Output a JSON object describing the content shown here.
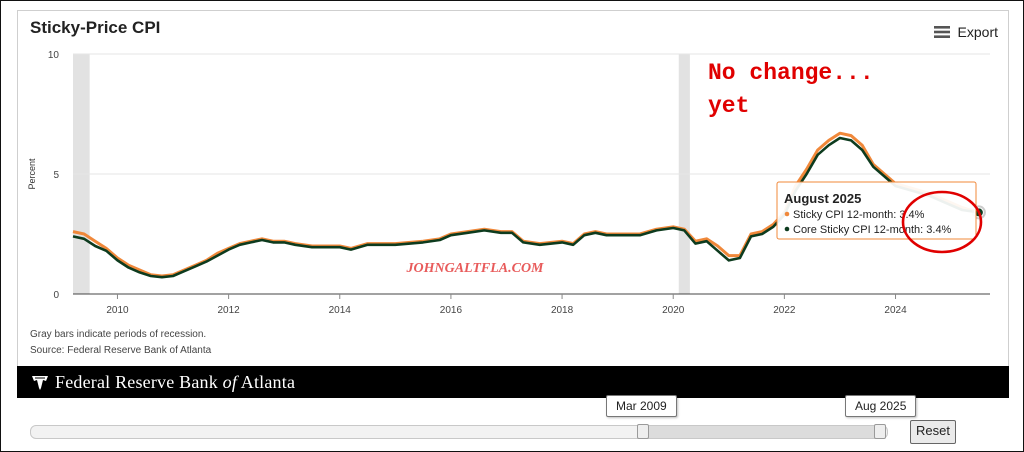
{
  "chart_title": "Sticky-Price CPI",
  "export_label": "Export",
  "notes": [
    "Gray bars indicate periods of recession.",
    "Source: Federal Reserve Bank of Atlanta"
  ],
  "banner": {
    "name_part1": "Federal Reserve Bank ",
    "name_of": "of",
    "name_part2": " Atlanta"
  },
  "annotation": {
    "line1": "No change...",
    "line2": "yet",
    "color": "#e00000"
  },
  "watermark": "JOHNGALTFLA.COM",
  "tooltip": {
    "title": "August 2025",
    "line1": "Sticky CPI 12-month: 3.4%",
    "line2": "Core Sticky CPI 12-month: 3.4%"
  },
  "navigator": {
    "start_label": "Mar 2009",
    "end_label": "Aug 2025",
    "reset_label": "Reset"
  },
  "chart_data": {
    "type": "line",
    "title": "Sticky-Price CPI",
    "ylabel": "Percent",
    "ylim": [
      0,
      10
    ],
    "xlim": [
      2009.2,
      2025.7
    ],
    "yticks": [
      0,
      5,
      10
    ],
    "xticks": [
      2010,
      2012,
      2014,
      2016,
      2018,
      2020,
      2022,
      2024
    ],
    "recessions": [
      [
        2009.2,
        2009.5
      ],
      [
        2020.1,
        2020.3
      ]
    ],
    "series": [
      {
        "name": "Sticky CPI 12-month",
        "color": "#f0883a",
        "points": [
          [
            2009.2,
            2.6
          ],
          [
            2009.4,
            2.5
          ],
          [
            2009.6,
            2.2
          ],
          [
            2009.8,
            1.9
          ],
          [
            2010.0,
            1.5
          ],
          [
            2010.2,
            1.2
          ],
          [
            2010.4,
            1.0
          ],
          [
            2010.6,
            0.8
          ],
          [
            2010.8,
            0.75
          ],
          [
            2011.0,
            0.8
          ],
          [
            2011.2,
            1.0
          ],
          [
            2011.4,
            1.2
          ],
          [
            2011.6,
            1.4
          ],
          [
            2011.8,
            1.7
          ],
          [
            2012.0,
            1.9
          ],
          [
            2012.2,
            2.1
          ],
          [
            2012.4,
            2.2
          ],
          [
            2012.6,
            2.3
          ],
          [
            2012.8,
            2.2
          ],
          [
            2013.0,
            2.2
          ],
          [
            2013.2,
            2.1
          ],
          [
            2013.5,
            2.0
          ],
          [
            2014.0,
            2.0
          ],
          [
            2014.2,
            1.9
          ],
          [
            2014.5,
            2.1
          ],
          [
            2015.0,
            2.1
          ],
          [
            2015.5,
            2.2
          ],
          [
            2015.8,
            2.3
          ],
          [
            2016.0,
            2.5
          ],
          [
            2016.3,
            2.6
          ],
          [
            2016.6,
            2.7
          ],
          [
            2016.9,
            2.6
          ],
          [
            2017.1,
            2.6
          ],
          [
            2017.3,
            2.2
          ],
          [
            2017.6,
            2.1
          ],
          [
            2018.0,
            2.2
          ],
          [
            2018.2,
            2.1
          ],
          [
            2018.4,
            2.5
          ],
          [
            2018.6,
            2.6
          ],
          [
            2018.8,
            2.5
          ],
          [
            2019.0,
            2.5
          ],
          [
            2019.4,
            2.5
          ],
          [
            2019.7,
            2.7
          ],
          [
            2020.0,
            2.8
          ],
          [
            2020.2,
            2.7
          ],
          [
            2020.4,
            2.2
          ],
          [
            2020.6,
            2.3
          ],
          [
            2020.8,
            2.0
          ],
          [
            2021.0,
            1.6
          ],
          [
            2021.2,
            1.6
          ],
          [
            2021.4,
            2.5
          ],
          [
            2021.6,
            2.6
          ],
          [
            2021.8,
            2.9
          ],
          [
            2022.0,
            3.4
          ],
          [
            2022.2,
            4.5
          ],
          [
            2022.4,
            5.2
          ],
          [
            2022.6,
            6.0
          ],
          [
            2022.8,
            6.4
          ],
          [
            2023.0,
            6.7
          ],
          [
            2023.2,
            6.6
          ],
          [
            2023.4,
            6.2
          ],
          [
            2023.6,
            5.4
          ],
          [
            2023.8,
            5.0
          ],
          [
            2024.0,
            4.6
          ],
          [
            2024.3,
            4.4
          ],
          [
            2024.6,
            4.2
          ],
          [
            2024.9,
            3.9
          ],
          [
            2025.2,
            3.6
          ],
          [
            2025.5,
            3.4
          ]
        ]
      },
      {
        "name": "Core Sticky CPI 12-month",
        "color": "#0d3b1e",
        "points": [
          [
            2009.2,
            2.4
          ],
          [
            2009.4,
            2.3
          ],
          [
            2009.6,
            2.0
          ],
          [
            2009.8,
            1.8
          ],
          [
            2010.0,
            1.4
          ],
          [
            2010.2,
            1.1
          ],
          [
            2010.4,
            0.9
          ],
          [
            2010.6,
            0.75
          ],
          [
            2010.8,
            0.7
          ],
          [
            2011.0,
            0.75
          ],
          [
            2011.2,
            0.95
          ],
          [
            2011.4,
            1.15
          ],
          [
            2011.6,
            1.35
          ],
          [
            2011.8,
            1.6
          ],
          [
            2012.0,
            1.85
          ],
          [
            2012.2,
            2.05
          ],
          [
            2012.4,
            2.15
          ],
          [
            2012.6,
            2.25
          ],
          [
            2012.8,
            2.15
          ],
          [
            2013.0,
            2.15
          ],
          [
            2013.2,
            2.05
          ],
          [
            2013.5,
            1.95
          ],
          [
            2014.0,
            1.95
          ],
          [
            2014.2,
            1.85
          ],
          [
            2014.5,
            2.05
          ],
          [
            2015.0,
            2.05
          ],
          [
            2015.5,
            2.15
          ],
          [
            2015.8,
            2.25
          ],
          [
            2016.0,
            2.45
          ],
          [
            2016.3,
            2.55
          ],
          [
            2016.6,
            2.65
          ],
          [
            2016.9,
            2.55
          ],
          [
            2017.1,
            2.55
          ],
          [
            2017.3,
            2.15
          ],
          [
            2017.6,
            2.05
          ],
          [
            2018.0,
            2.15
          ],
          [
            2018.2,
            2.05
          ],
          [
            2018.4,
            2.45
          ],
          [
            2018.6,
            2.55
          ],
          [
            2018.8,
            2.45
          ],
          [
            2019.0,
            2.45
          ],
          [
            2019.4,
            2.45
          ],
          [
            2019.7,
            2.65
          ],
          [
            2020.0,
            2.75
          ],
          [
            2020.2,
            2.65
          ],
          [
            2020.4,
            2.1
          ],
          [
            2020.6,
            2.2
          ],
          [
            2020.8,
            1.8
          ],
          [
            2021.0,
            1.4
          ],
          [
            2021.2,
            1.5
          ],
          [
            2021.4,
            2.4
          ],
          [
            2021.6,
            2.5
          ],
          [
            2021.8,
            2.8
          ],
          [
            2022.0,
            3.3
          ],
          [
            2022.2,
            4.3
          ],
          [
            2022.4,
            5.0
          ],
          [
            2022.6,
            5.8
          ],
          [
            2022.8,
            6.2
          ],
          [
            2023.0,
            6.5
          ],
          [
            2023.2,
            6.4
          ],
          [
            2023.4,
            6.0
          ],
          [
            2023.6,
            5.3
          ],
          [
            2023.8,
            4.9
          ],
          [
            2024.0,
            4.5
          ],
          [
            2024.3,
            4.3
          ],
          [
            2024.6,
            4.1
          ],
          [
            2024.9,
            3.8
          ],
          [
            2025.2,
            3.5
          ],
          [
            2025.5,
            3.4
          ]
        ]
      }
    ]
  }
}
